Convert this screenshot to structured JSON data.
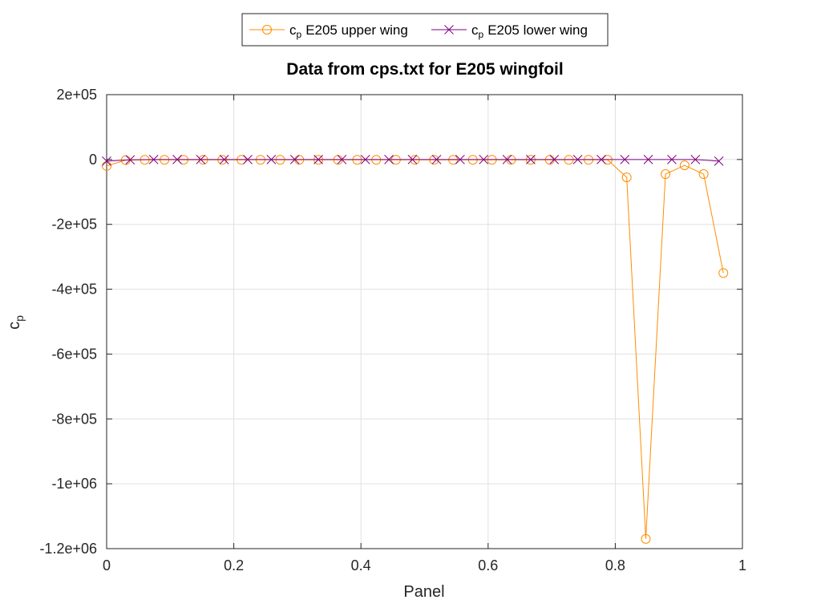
{
  "chart_data": {
    "type": "line",
    "title": "Data from cps.txt for E205 wingfoil",
    "xlabel": "Panel",
    "ylabel": {
      "base": "c",
      "sub": "p"
    },
    "xlim": [
      0,
      1
    ],
    "ylim": [
      -1200000,
      200000
    ],
    "x_ticks": [
      0,
      0.2,
      0.4,
      0.6,
      0.8,
      1
    ],
    "x_tick_labels": [
      "0",
      "0.2",
      "0.4",
      "0.6",
      "0.8",
      "1"
    ],
    "y_ticks": [
      200000,
      0,
      -200000,
      -400000,
      -600000,
      -800000,
      -1000000,
      -1200000
    ],
    "y_tick_labels": [
      "2e+05",
      "0",
      "-2e+05",
      "-4e+05",
      "-6e+05",
      "-8e+05",
      "-1e+06",
      "-1.2e+06"
    ],
    "grid": true,
    "legend_position": "top-center-outside",
    "series": [
      {
        "name": "E205 upper wing",
        "legend_prefix": "c",
        "legend_sub": "p",
        "marker": "circle",
        "color": "#ff8c00",
        "x": [
          0,
          0.03,
          0.06,
          0.091,
          0.121,
          0.152,
          0.182,
          0.212,
          0.242,
          0.273,
          0.303,
          0.333,
          0.364,
          0.394,
          0.424,
          0.455,
          0.485,
          0.515,
          0.545,
          0.576,
          0.606,
          0.636,
          0.667,
          0.697,
          0.727,
          0.758,
          0.788,
          0.818,
          0.848,
          0.879,
          0.909,
          0.939,
          0.97
        ],
        "y": [
          -20000,
          -2000,
          -1000,
          -1000,
          -1000,
          -1000,
          -1000,
          -1000,
          -1000,
          -1000,
          -1000,
          -1000,
          -1000,
          -1000,
          -1000,
          -1000,
          -1000,
          -1000,
          -1000,
          -1000,
          -1000,
          -1000,
          -1000,
          -1000,
          -1000,
          -1000,
          -1000,
          -55000,
          -1170000,
          -45000,
          -18000,
          -45000,
          -350000
        ]
      },
      {
        "name": "E205 lower wing",
        "legend_prefix": "c",
        "legend_sub": "p",
        "marker": "x",
        "color": "#800080",
        "x": [
          0,
          0.037,
          0.074,
          0.111,
          0.148,
          0.185,
          0.222,
          0.259,
          0.296,
          0.333,
          0.37,
          0.407,
          0.444,
          0.481,
          0.519,
          0.556,
          0.593,
          0.63,
          0.667,
          0.704,
          0.741,
          0.778,
          0.815,
          0.852,
          0.889,
          0.926,
          0.963
        ],
        "y": [
          -5000,
          -1000,
          0,
          0,
          0,
          0,
          0,
          0,
          0,
          0,
          0,
          0,
          0,
          0,
          0,
          0,
          0,
          0,
          0,
          0,
          0,
          0,
          0,
          0,
          0,
          0,
          -5000
        ]
      }
    ]
  }
}
